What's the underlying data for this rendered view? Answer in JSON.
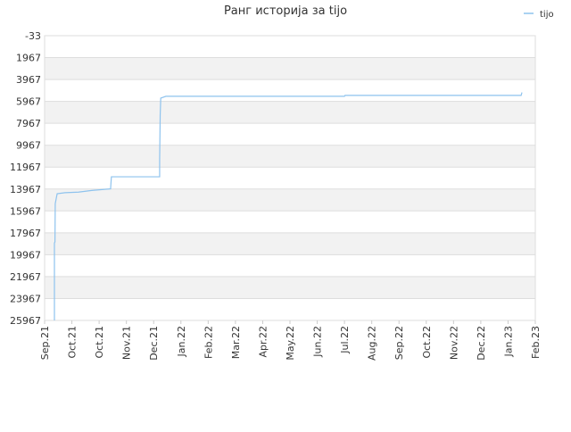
{
  "chart_data": {
    "type": "line",
    "title": "Ранг историја за tijo",
    "xlim": [
      0,
      18
    ],
    "xticks": [
      {
        "value": 0,
        "label": "Sep.21"
      },
      {
        "value": 1,
        "label": "Oct.21"
      },
      {
        "value": 2,
        "label": "Oct.21"
      },
      {
        "value": 3,
        "label": "Nov.21"
      },
      {
        "value": 4,
        "label": "Dec.21"
      },
      {
        "value": 5,
        "label": "Jan.22"
      },
      {
        "value": 6,
        "label": "Feb.22"
      },
      {
        "value": 7,
        "label": "Mar.22"
      },
      {
        "value": 8,
        "label": "Apr.22"
      },
      {
        "value": 9,
        "label": "May.22"
      },
      {
        "value": 10,
        "label": "Jun.22"
      },
      {
        "value": 11,
        "label": "Jul.22"
      },
      {
        "value": 12,
        "label": "Aug.22"
      },
      {
        "value": 13,
        "label": "Sep.22"
      },
      {
        "value": 14,
        "label": "Oct.22"
      },
      {
        "value": 15,
        "label": "Nov.22"
      },
      {
        "value": 16,
        "label": "Dec.22"
      },
      {
        "value": 17,
        "label": "Jan.23"
      },
      {
        "value": 18,
        "label": "Feb.23"
      }
    ],
    "ylim": [
      25967,
      -33
    ],
    "yticks": [
      -33,
      1967,
      3967,
      5967,
      7967,
      9967,
      11967,
      13967,
      15967,
      17967,
      19967,
      21967,
      23967,
      25967
    ],
    "grid": true,
    "legend": "top-right",
    "series": [
      {
        "name": "tijo",
        "color": "#8ec3ee",
        "x": [
          0.36,
          0.36,
          0.38,
          0.39,
          0.46,
          0.75,
          1.24,
          1.73,
          2.42,
          2.45,
          4.22,
          4.22,
          4.24,
          4.26,
          4.45,
          11.0,
          11.02,
          17.48,
          17.51
        ],
        "values": [
          25967,
          18900,
          18800,
          15300,
          14400,
          14300,
          14250,
          14100,
          13950,
          12850,
          12850,
          11300,
          7200,
          5670,
          5500,
          5500,
          5420,
          5420,
          5150
        ]
      }
    ]
  }
}
